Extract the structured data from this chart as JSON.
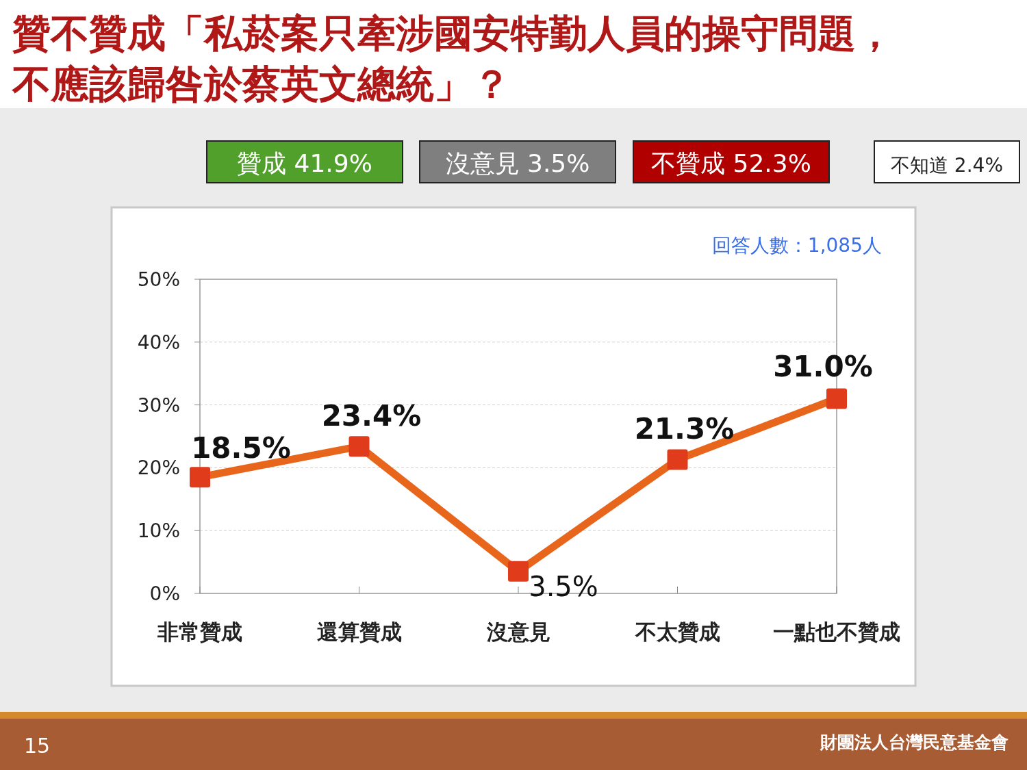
{
  "chart_data": {
    "type": "line",
    "title": "贊不贊成「私菸案只牽涉國安特勤人員的操守問題，不應該歸咎於蔡英文總統」？",
    "categories": [
      "非常贊成",
      "還算贊成",
      "沒意見",
      "不太贊成",
      "一點也不贊成"
    ],
    "series": [
      {
        "color": "#e8661c",
        "values": [
          18.5,
          23.4,
          3.5,
          21.3,
          31.0
        ],
        "value_labels": [
          "18.5%",
          "23.4%",
          "3.5%",
          "21.3%",
          "31.0%"
        ]
      }
    ],
    "ylim": [
      0,
      50
    ],
    "yticks": [
      {
        "value": 0,
        "label": "0%"
      },
      {
        "value": 10,
        "label": "10%"
      },
      {
        "value": 20,
        "label": "20%"
      },
      {
        "value": 30,
        "label": "30%"
      },
      {
        "value": 40,
        "label": "40%"
      },
      {
        "value": 50,
        "label": "50%"
      }
    ],
    "grid": "y",
    "marker": "square",
    "line_style": "solid",
    "annotations": [
      "贊成 41.9%",
      "沒意見 3.5%",
      "不贊成 52.3%",
      "不知道 2.4%",
      "回答人數：1,085人",
      "15",
      "財團法人台灣民意基金會"
    ]
  }
}
